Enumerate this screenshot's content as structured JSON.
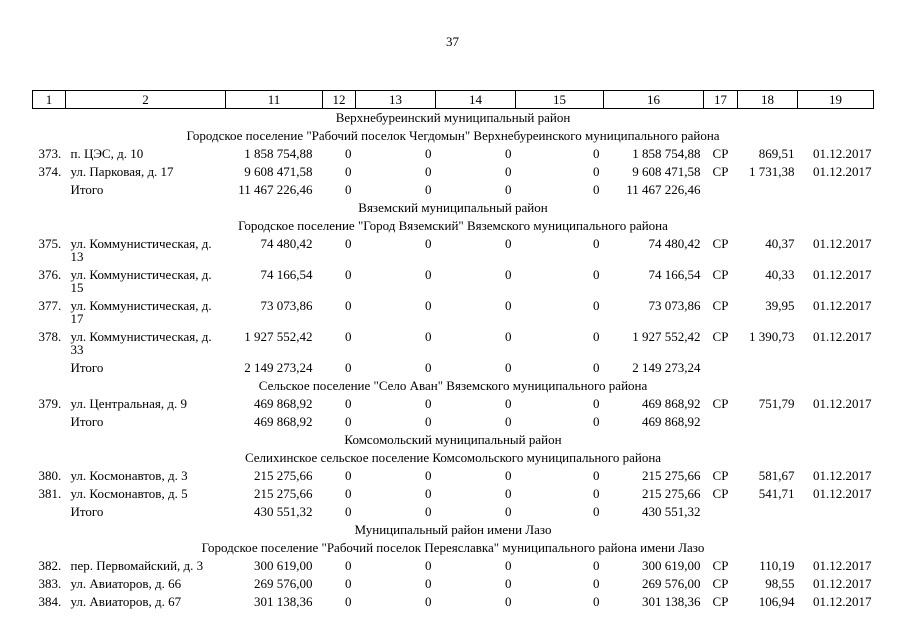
{
  "page": {
    "number": "37"
  },
  "table": {
    "header_cols": [
      "1",
      "2",
      "11",
      "12",
      "13",
      "14",
      "15",
      "16",
      "17",
      "18",
      "19"
    ],
    "sections": [
      {
        "district": "Верхнебуреинский муниципальный район",
        "settlements": [
          {
            "name": "Городское поселение \"Рабочий поселок Чегдомын\" Верхнебуреинского муниципального района",
            "rows": [
              {
                "num": "373.",
                "address": "п. ЦЭС, д. 10",
                "c11": "1 858 754,88",
                "c12": "0",
                "c13": "0",
                "c14": "0",
                "c15": "0",
                "c16": "1 858 754,88",
                "c17": "СР",
                "c18": "869,51",
                "c19": "01.12.2017"
              },
              {
                "num": "374.",
                "address": "ул. Парковая, д. 17",
                "c11": "9 608 471,58",
                "c12": "0",
                "c13": "0",
                "c14": "0",
                "c15": "0",
                "c16": "9 608 471,58",
                "c17": "СР",
                "c18": "1 731,38",
                "c19": "01.12.2017"
              }
            ],
            "total": {
              "label": "Итого",
              "c11": "11 467 226,46",
              "c12": "0",
              "c13": "0",
              "c14": "0",
              "c15": "0",
              "c16": "11 467 226,46"
            }
          }
        ]
      },
      {
        "district": "Вяземский муниципальный район",
        "settlements": [
          {
            "name": "Городское поселение \"Город Вяземский\" Вяземского муниципального района",
            "rows": [
              {
                "num": "375.",
                "address": "ул. Коммунистическая, д. 13",
                "c11": "74 480,42",
                "c12": "0",
                "c13": "0",
                "c14": "0",
                "c15": "0",
                "c16": "74 480,42",
                "c17": "СР",
                "c18": "40,37",
                "c19": "01.12.2017"
              },
              {
                "num": "376.",
                "address": "ул. Коммунистическая, д. 15",
                "c11": "74 166,54",
                "c12": "0",
                "c13": "0",
                "c14": "0",
                "c15": "0",
                "c16": "74 166,54",
                "c17": "СР",
                "c18": "40,33",
                "c19": "01.12.2017"
              },
              {
                "num": "377.",
                "address": "ул. Коммунистическая, д. 17",
                "c11": "73 073,86",
                "c12": "0",
                "c13": "0",
                "c14": "0",
                "c15": "0",
                "c16": "73 073,86",
                "c17": "СР",
                "c18": "39,95",
                "c19": "01.12.2017"
              },
              {
                "num": "378.",
                "address": "ул. Коммунистическая, д. 33",
                "c11": "1 927 552,42",
                "c12": "0",
                "c13": "0",
                "c14": "0",
                "c15": "0",
                "c16": "1 927 552,42",
                "c17": "СР",
                "c18": "1 390,73",
                "c19": "01.12.2017"
              }
            ],
            "total": {
              "label": "Итого",
              "c11": "2 149 273,24",
              "c12": "0",
              "c13": "0",
              "c14": "0",
              "c15": "0",
              "c16": "2 149 273,24"
            }
          },
          {
            "name": "Сельское поселение \"Село Аван\" Вяземского муниципального района",
            "rows": [
              {
                "num": "379.",
                "address": "ул. Центральная, д. 9",
                "c11": "469 868,92",
                "c12": "0",
                "c13": "0",
                "c14": "0",
                "c15": "0",
                "c16": "469 868,92",
                "c17": "СР",
                "c18": "751,79",
                "c19": "01.12.2017"
              }
            ],
            "total": {
              "label": "Итого",
              "c11": "469 868,92",
              "c12": "0",
              "c13": "0",
              "c14": "0",
              "c15": "0",
              "c16": "469 868,92"
            }
          }
        ]
      },
      {
        "district": "Комсомольский муниципальный район",
        "settlements": [
          {
            "name": "Селихинское сельское поселение Комсомольского муниципального района",
            "rows": [
              {
                "num": "380.",
                "address": "ул. Космонавтов, д. 3",
                "c11": "215 275,66",
                "c12": "0",
                "c13": "0",
                "c14": "0",
                "c15": "0",
                "c16": "215 275,66",
                "c17": "СР",
                "c18": "581,67",
                "c19": "01.12.2017"
              },
              {
                "num": "381.",
                "address": "ул. Космонавтов, д. 5",
                "c11": "215 275,66",
                "c12": "0",
                "c13": "0",
                "c14": "0",
                "c15": "0",
                "c16": "215 275,66",
                "c17": "СР",
                "c18": "541,71",
                "c19": "01.12.2017"
              }
            ],
            "total": {
              "label": "Итого",
              "c11": "430 551,32",
              "c12": "0",
              "c13": "0",
              "c14": "0",
              "c15": "0",
              "c16": "430 551,32"
            }
          }
        ]
      },
      {
        "district": "Муниципальный район имени Лазо",
        "settlements": [
          {
            "name": "Городское поселение \"Рабочий поселок Переяславка\" муниципального района имени Лазо",
            "rows": [
              {
                "num": "382.",
                "address": "пер. Первомайский, д. 3",
                "c11": "300 619,00",
                "c12": "0",
                "c13": "0",
                "c14": "0",
                "c15": "0",
                "c16": "300 619,00",
                "c17": "СР",
                "c18": "110,19",
                "c19": "01.12.2017"
              },
              {
                "num": "383.",
                "address": "ул. Авиаторов, д. 66",
                "c11": "269 576,00",
                "c12": "0",
                "c13": "0",
                "c14": "0",
                "c15": "0",
                "c16": "269 576,00",
                "c17": "СР",
                "c18": "98,55",
                "c19": "01.12.2017"
              },
              {
                "num": "384.",
                "address": "ул. Авиаторов, д. 67",
                "c11": "301 138,36",
                "c12": "0",
                "c13": "0",
                "c14": "0",
                "c15": "0",
                "c16": "301 138,36",
                "c17": "СР",
                "c18": "106,94",
                "c19": "01.12.2017"
              }
            ]
          }
        ]
      }
    ]
  }
}
